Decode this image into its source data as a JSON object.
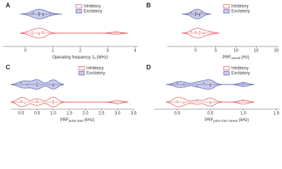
{
  "chart_data": [
    {
      "type": "violin",
      "panel": "A",
      "xlabel": [
        {
          "text": "Operating frequency, f"
        },
        {
          "text": "0",
          "sub": true
        },
        {
          "text": " (MHz)"
        }
      ],
      "xlim": [
        -0.9,
        4.1
      ],
      "xticks": [
        0,
        1,
        2,
        3,
        4
      ],
      "legend": "top-right",
      "series": [
        {
          "name": "Inhibitory",
          "color": "#e0474c",
          "fill": "#ffffff",
          "values": [
            0.25,
            0.5,
            0.5,
            0.65,
            0.65,
            0.25,
            3.3
          ]
        },
        {
          "name": "Excitatory",
          "color": "#5a5fb0",
          "fill": "#c9cbe9",
          "values": [
            0.3,
            0.5,
            0.5,
            0.5,
            0.65,
            0.65,
            0.9,
            0.25
          ]
        }
      ]
    },
    {
      "type": "violin",
      "panel": "B",
      "xlabel": [
        {
          "text": "PRF"
        },
        {
          "text": "overall",
          "sub": true
        },
        {
          "text": " (Hz)"
        }
      ],
      "xlim": [
        -7,
        20.5
      ],
      "xticks": [
        0,
        5,
        10,
        15,
        20
      ],
      "legend": "top-left",
      "series": [
        {
          "name": "Inhibitory",
          "color": "#e0474c",
          "fill": "#ffffff",
          "values": [
            0,
            0,
            1,
            1,
            2,
            3.5,
            -1
          ]
        },
        {
          "name": "Excitatory",
          "color": "#5a5fb0",
          "fill": "#c9cbe9",
          "values": [
            -1,
            0,
            0,
            0,
            0.5,
            1,
            1.5,
            1
          ]
        }
      ]
    },
    {
      "type": "violin",
      "panel": "C",
      "xlabel": [
        {
          "text": "PRF"
        },
        {
          "text": "pulse train",
          "sub": true
        },
        {
          "text": " (kHz)"
        }
      ],
      "xlim": [
        -0.3,
        3.5
      ],
      "xticks": [
        {
          "value": 0,
          "label": "0.0"
        },
        0.5,
        {
          "value": 1,
          "label": "1.0"
        },
        1.5,
        {
          "value": 2,
          "label": "2.0"
        },
        2.5,
        {
          "value": 3,
          "label": "3.0"
        },
        3.5
      ],
      "legend": "top-right",
      "series": [
        {
          "name": "Inhibitory",
          "color": "#e0474c",
          "fill": "#ffffff",
          "values": [
            0,
            0,
            0.1,
            0.5,
            0.5,
            1,
            1,
            1,
            3
          ]
        },
        {
          "name": "Excitatory",
          "color": "#5a5fb0",
          "fill": "#c9cbe9",
          "values": [
            0,
            0.2,
            0.5,
            0.5,
            1,
            1
          ]
        }
      ]
    },
    {
      "type": "violin",
      "panel": "D",
      "xlabel": [
        {
          "text": "PRF"
        },
        {
          "text": "pulse train repeat",
          "sub": true
        },
        {
          "text": " (kHz)"
        }
      ],
      "xlim": [
        -0.35,
        1.55
      ],
      "xticks": [
        {
          "value": 0,
          "label": "0.0"
        },
        0.5,
        {
          "value": 1,
          "label": "1.0"
        },
        1.5
      ],
      "legend": "top-left",
      "series": [
        {
          "name": "Inhibitory",
          "color": "#e0474c",
          "fill": "#ffffff",
          "values": [
            0,
            0,
            0.1,
            0.3,
            0.5,
            0.5,
            1
          ]
        },
        {
          "name": "Excitatory",
          "color": "#5a5fb0",
          "fill": "#c9cbe9",
          "values": [
            0,
            0.1,
            0.3,
            0.4,
            0.5,
            0.5,
            1
          ]
        }
      ]
    }
  ]
}
